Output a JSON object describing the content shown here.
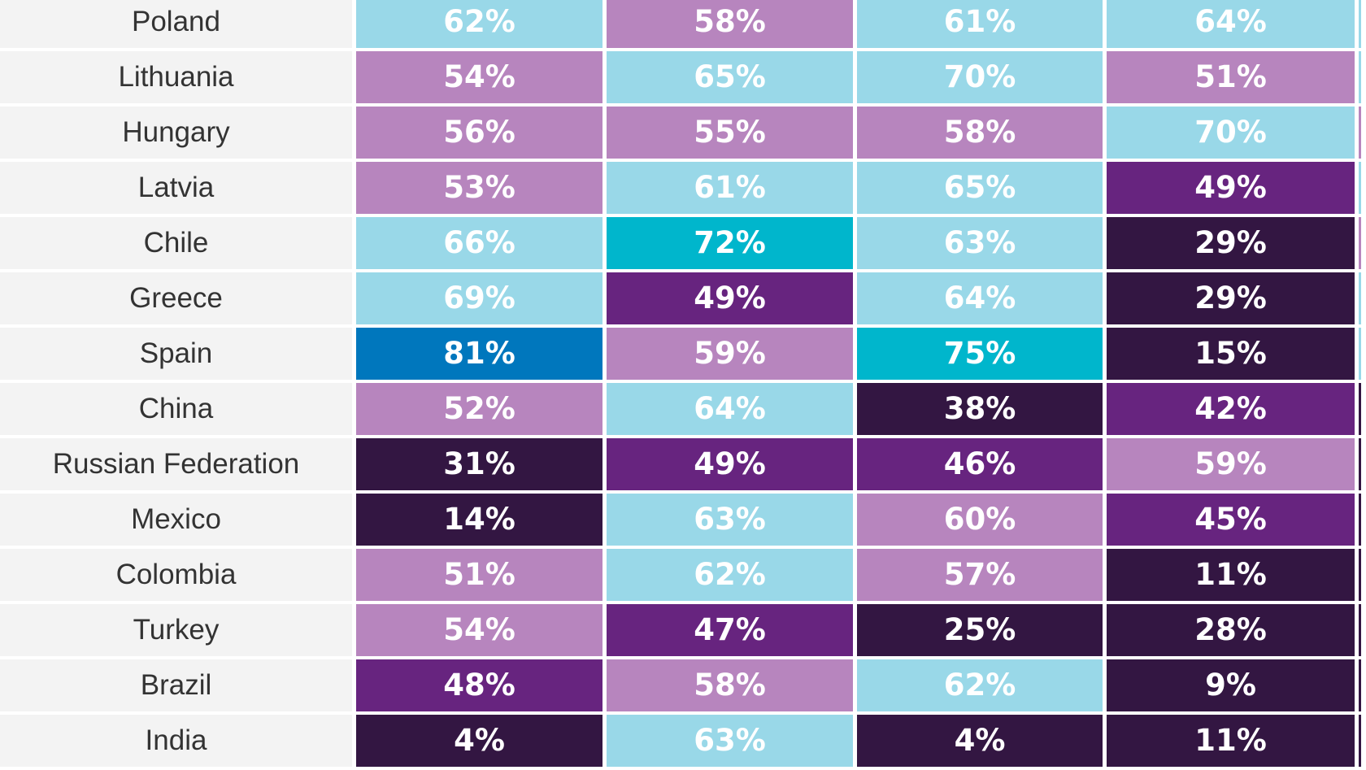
{
  "chart_data": {
    "type": "table",
    "title": "",
    "colors": {
      "very_high": "#0077bd",
      "high": "#00b6cc",
      "above_mid": "#99d8e8",
      "mid": "#b785be",
      "below_mid": "#67247f",
      "low": "#331642",
      "label_bg": "#f3f3f3"
    },
    "rows": [
      {
        "country": "Poland",
        "values": [
          "62%",
          "58%",
          "61%",
          "64%"
        ],
        "colors": [
          "#99d8e8",
          "#b785be",
          "#99d8e8",
          "#99d8e8"
        ],
        "edge": "#99d8e8"
      },
      {
        "country": "Lithuania",
        "values": [
          "54%",
          "65%",
          "70%",
          "51%"
        ],
        "colors": [
          "#b785be",
          "#99d8e8",
          "#99d8e8",
          "#b785be"
        ],
        "edge": "#99d8e8"
      },
      {
        "country": "Hungary",
        "values": [
          "56%",
          "55%",
          "58%",
          "70%"
        ],
        "colors": [
          "#b785be",
          "#b785be",
          "#b785be",
          "#99d8e8"
        ],
        "edge": "#b785be"
      },
      {
        "country": "Latvia",
        "values": [
          "53%",
          "61%",
          "65%",
          "49%"
        ],
        "colors": [
          "#b785be",
          "#99d8e8",
          "#99d8e8",
          "#67247f"
        ],
        "edge": "#99d8e8"
      },
      {
        "country": "Chile",
        "values": [
          "66%",
          "72%",
          "63%",
          "29%"
        ],
        "colors": [
          "#99d8e8",
          "#00b6cc",
          "#99d8e8",
          "#331642"
        ],
        "edge": "#b785be"
      },
      {
        "country": "Greece",
        "values": [
          "69%",
          "49%",
          "64%",
          "29%"
        ],
        "colors": [
          "#99d8e8",
          "#67247f",
          "#99d8e8",
          "#331642"
        ],
        "edge": "#99d8e8"
      },
      {
        "country": "Spain",
        "values": [
          "81%",
          "59%",
          "75%",
          "15%"
        ],
        "colors": [
          "#0077bd",
          "#b785be",
          "#00b6cc",
          "#331642"
        ],
        "edge": "#99d8e8"
      },
      {
        "country": "China",
        "values": [
          "52%",
          "64%",
          "38%",
          "42%"
        ],
        "colors": [
          "#b785be",
          "#99d8e8",
          "#331642",
          "#67247f"
        ],
        "edge": "#331642"
      },
      {
        "country": "Russian Federation",
        "values": [
          "31%",
          "49%",
          "46%",
          "59%"
        ],
        "colors": [
          "#331642",
          "#67247f",
          "#67247f",
          "#b785be"
        ],
        "edge": "#331642"
      },
      {
        "country": "Mexico",
        "values": [
          "14%",
          "63%",
          "60%",
          "45%"
        ],
        "colors": [
          "#331642",
          "#99d8e8",
          "#b785be",
          "#67247f"
        ],
        "edge": "#331642"
      },
      {
        "country": "Colombia",
        "values": [
          "51%",
          "62%",
          "57%",
          "11%"
        ],
        "colors": [
          "#b785be",
          "#99d8e8",
          "#b785be",
          "#331642"
        ],
        "edge": "#331642"
      },
      {
        "country": "Turkey",
        "values": [
          "54%",
          "47%",
          "25%",
          "28%"
        ],
        "colors": [
          "#b785be",
          "#67247f",
          "#331642",
          "#331642"
        ],
        "edge": "#331642"
      },
      {
        "country": "Brazil",
        "values": [
          "48%",
          "58%",
          "62%",
          "9%"
        ],
        "colors": [
          "#67247f",
          "#b785be",
          "#99d8e8",
          "#331642"
        ],
        "edge": "#331642"
      },
      {
        "country": "India",
        "values": [
          "4%",
          "63%",
          "4%",
          "11%"
        ],
        "colors": [
          "#331642",
          "#99d8e8",
          "#331642",
          "#331642"
        ],
        "edge": "#331642"
      }
    ]
  }
}
